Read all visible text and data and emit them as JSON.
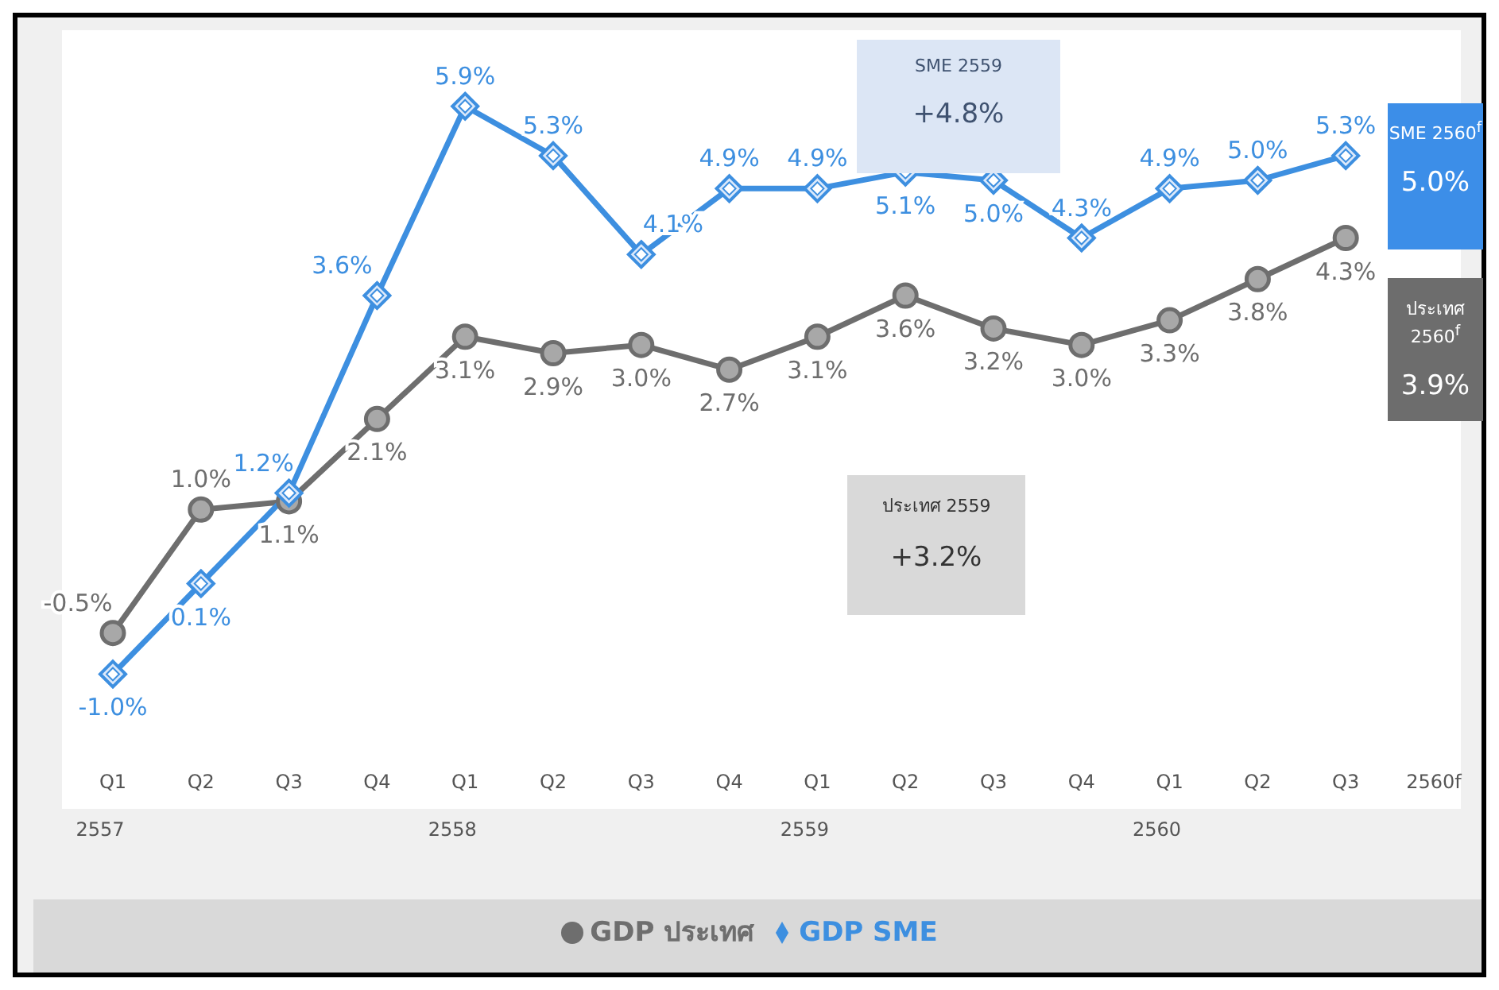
{
  "chart_data": {
    "type": "line",
    "categories": [
      "Q1\n2557",
      "Q2",
      "Q3",
      "Q4",
      "Q1\n2558",
      "Q2",
      "Q3",
      "Q4",
      "Q1\n2559",
      "Q2",
      "Q3",
      "Q4",
      "Q1\n2560",
      "Q2",
      "Q3",
      "2560f"
    ],
    "series": [
      {
        "name": "GDP ประเทศ",
        "color": "#6e6e6e",
        "marker": "circle",
        "values": [
          -0.5,
          1.0,
          1.1,
          2.1,
          3.1,
          2.9,
          3.0,
          2.7,
          3.1,
          3.6,
          3.2,
          3.0,
          3.3,
          3.8,
          4.3,
          null
        ],
        "value_labels": [
          "-0.5%",
          "1.0%",
          "1.1%",
          "2.1%",
          "3.1%",
          "2.9%",
          "3.0%",
          "2.7%",
          "3.1%",
          "3.6%",
          "3.2%",
          "3.0%",
          "3.3%",
          "3.8%",
          "4.3%",
          null
        ]
      },
      {
        "name": "GDP SME",
        "color": "#3d8fe0",
        "marker": "diamond",
        "values": [
          -1.0,
          0.1,
          1.2,
          3.6,
          5.9,
          5.3,
          4.1,
          4.9,
          4.9,
          5.1,
          5.0,
          4.3,
          4.9,
          5.0,
          5.3,
          null
        ],
        "value_labels": [
          "-1.0%",
          "0.1%",
          "1.2%",
          "3.6%",
          "5.9%",
          "5.3%",
          "4.1%",
          "4.9%",
          "4.9%",
          "5.1%",
          "5.0%",
          "4.3%",
          "4.9%",
          "5.0%",
          "5.3%",
          null
        ]
      }
    ],
    "legend": "bottom",
    "annotations": [
      "SME 2559",
      "+4.8%",
      "ประเทศ 2559",
      "+3.2%",
      "SME 2560$^{f}$",
      "5.0%",
      "ประเทศ 2560$^{f}$",
      "3.9%"
    ]
  }
}
